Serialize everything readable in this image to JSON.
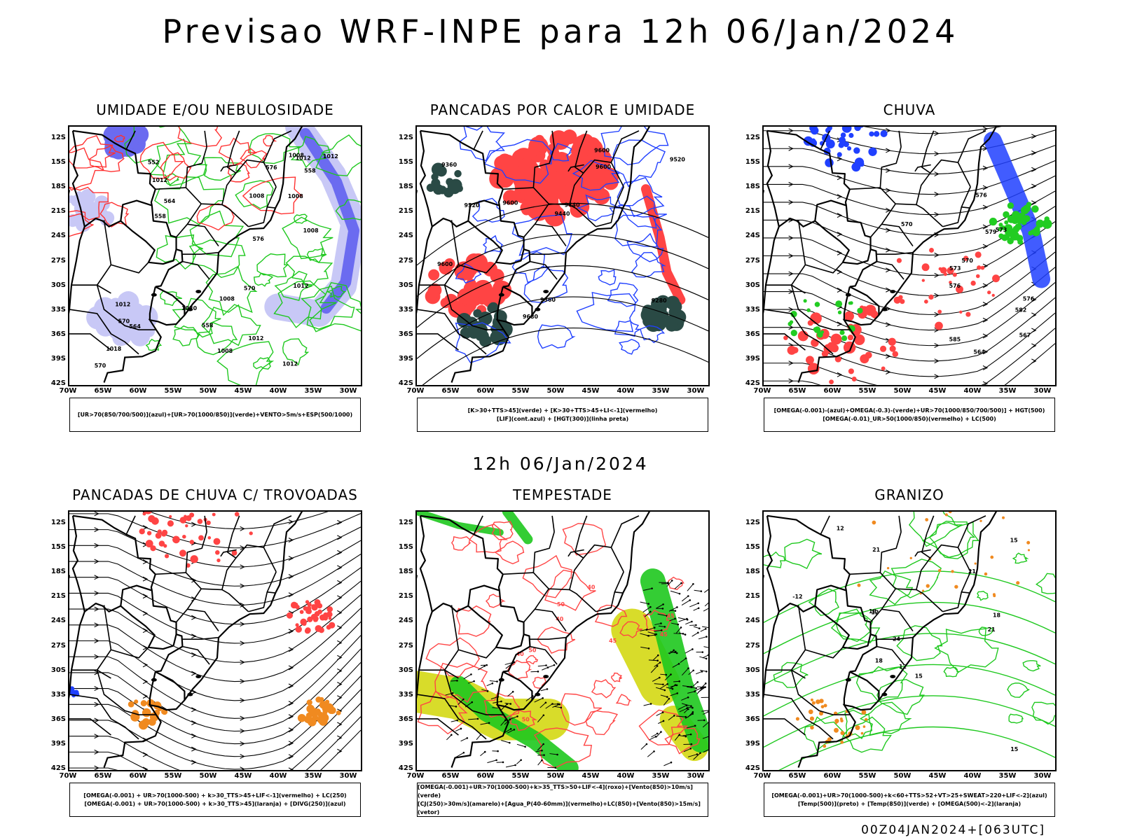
{
  "title": "Previsao WRF-INPE  para 12h 06/Jan/2024",
  "mid_title": "12h 06/Jan/2024",
  "footer": "00Z04JAN2024+[063UTC]",
  "lat_labels": [
    "12S",
    "15S",
    "18S",
    "21S",
    "24S",
    "27S",
    "30S",
    "33S",
    "36S",
    "39S",
    "42S"
  ],
  "lon_labels": [
    "70W",
    "65W",
    "60W",
    "55W",
    "50W",
    "45W",
    "40W",
    "35W",
    "30W"
  ],
  "panels": [
    {
      "title": "UMIDADE E/OU NEBULOSIDADE",
      "legend": [
        "[UR>70(850/700/500)](azul)+[UR>70(1000/850)](verde)+VENTO>5m/s+ESP(500/1000)"
      ],
      "contour_labels": [
        "1012",
        "1012",
        "1012",
        "1012",
        "1008",
        "1008",
        "1008",
        "1012",
        "1012",
        "1012",
        "1008",
        "1008",
        "1018",
        "1020",
        "1008",
        "570",
        "576",
        "570",
        "564",
        "576",
        "558",
        "552",
        "558",
        "570",
        "564",
        "558"
      ],
      "colors": {
        "fill": "#6b6bf0",
        "light": "#c8c8f6",
        "line": "#1ec81e",
        "contour": "#ff3030"
      }
    },
    {
      "title": "PANCADAS POR CALOR E UMIDADE",
      "legend": [
        "[K>30+TTS>45](verde) + [K>30+TTS>45+LI<-1](vermelho)",
        "[LIF](cont.azul) + [HGT(300)](linha preta)"
      ],
      "contour_labels": [
        "9600",
        "9600",
        "9680",
        "9600",
        "9600",
        "9520",
        "9520",
        "9440",
        "9440",
        "9360",
        "9280",
        "9360"
      ],
      "colors": {
        "fill": "#ff4444",
        "dark": "#2a4a45",
        "line": "#2040ff"
      }
    },
    {
      "title": "CHUVA",
      "legend": [
        "[OMEGA(-0.001)-(azul)+OMEGA(-0.3)-(verde)+UR>70(1000/850/700/500)] + HGT(500)",
        "[OMEGA(-0.01)_UR>50(1000/850)(vermelho) + LC(500)"
      ],
      "contour_labels": [
        "576",
        "576",
        "579",
        "582",
        "585",
        "576",
        "573",
        "570",
        "567",
        "564",
        "570",
        "573"
      ],
      "colors": {
        "fill": "#ff4444",
        "blue": "#2040ff",
        "green": "#22cc22"
      }
    },
    {
      "title": "PANCADAS DE CHUVA C/ TROVOADAS",
      "legend": [
        "[OMEGA(-0.001) + UR>70(1000-500) + k>30_TTS>45+LIF<-1](vermelho) + LC(250)",
        "[OMEGA(-0.001) + UR>70(1000-500) + k>30_TTS>45](laranja) + [DIVG(250)](azul)"
      ],
      "contour_labels": [],
      "colors": {
        "fill": "#ff4444",
        "orange": "#f08a20",
        "blue": "#2040ff"
      }
    },
    {
      "title": "TEMPESTADE",
      "legend": [
        "[OMEGA(-0.001)+UR>70(1000-500)+k>35_TTS>50+LIF<-4](roxo)+[Vento(850)>10m/s](verde)",
        "[CJ(250)>30m/s](amarelo)+[Agua_P(40-60mm)](vermelho)+LC(850)+[Vento(850)>15m/s](vetor)"
      ],
      "contour_labels": [
        "50",
        "50",
        "45",
        "45",
        "40",
        "45",
        "40",
        "50",
        "40"
      ],
      "colors": {
        "yellow": "#d8dc2a",
        "green": "#1ec81e",
        "line": "#ff4444"
      }
    },
    {
      "title": "GRANIZO",
      "legend": [
        "[OMEGA(-0.001)+UR>70(1000-500)+k<60+TTS>52+VT>25+SWEAT>220+LIF<-2](azul)",
        "[Temp(500)](preto) + [Temp(850)](verde) + [OMEGA(500)<-2](laranja)"
      ],
      "contour_labels": [
        "21",
        "24",
        "21",
        "12",
        "12",
        "15",
        "18",
        "18",
        "15",
        "12",
        "21",
        "18",
        "15",
        "-12"
      ],
      "colors": {
        "line": "#1ec81e",
        "orange": "#f08a20"
      }
    }
  ]
}
